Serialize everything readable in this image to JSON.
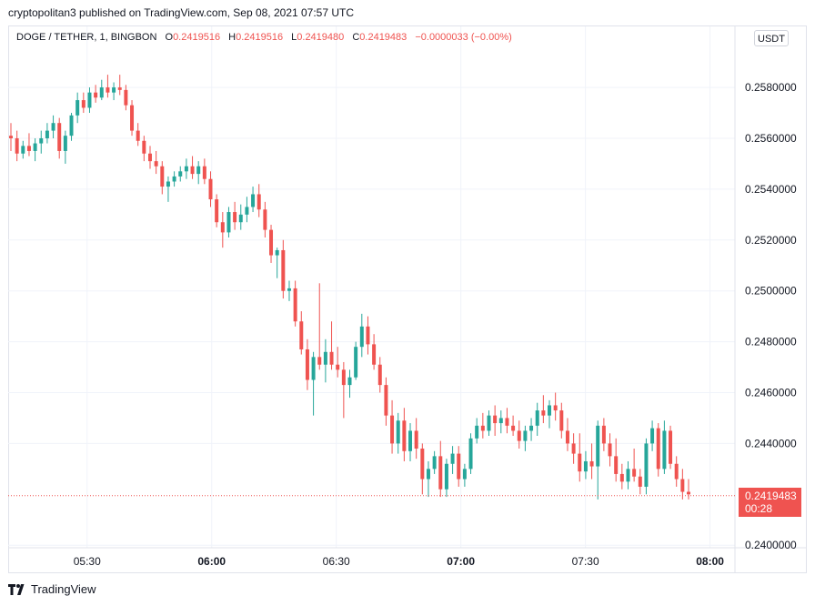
{
  "header": {
    "attribution": "cryptopolitan3 published on TradingView.com, Sep 08, 2021 07:57 UTC"
  },
  "legend": {
    "symbol": "DOGE / TETHER, 1, BINGBON",
    "o_label": "O",
    "o_value": "0.2419516",
    "h_label": "H",
    "h_value": "0.2419516",
    "l_label": "L",
    "l_value": "0.2419480",
    "c_label": "C",
    "c_value": "0.2419483",
    "change": "−0.0000033 (−0.00%)"
  },
  "currency_button": "USDT",
  "price_tag": {
    "price": "0.2419483",
    "countdown": "00:28"
  },
  "footer": {
    "brand": "TradingView",
    "logo_icon": "tradingview-logo-icon"
  },
  "colors": {
    "up": "#26a69a",
    "down": "#ef5350",
    "grid": "#f0f3fa",
    "text": "#131722"
  },
  "chart_data": {
    "type": "candlestick",
    "interval": "1",
    "grid": true,
    "y_ticks": [
      "0.2400000",
      "0.2440000",
      "0.2460000",
      "0.2480000",
      "0.2500000",
      "0.2520000",
      "0.2540000",
      "0.2560000",
      "0.2580000"
    ],
    "ylim": [
      0.2399,
      0.2604
    ],
    "x_ticks": [
      {
        "label": "05:30",
        "minute": 330,
        "bold": false
      },
      {
        "label": "06:00",
        "minute": 360,
        "bold": true
      },
      {
        "label": "06:30",
        "minute": 390,
        "bold": false
      },
      {
        "label": "07:00",
        "minute": 420,
        "bold": true
      },
      {
        "label": "07:30",
        "minute": 450,
        "bold": false
      },
      {
        "label": "08:00",
        "minute": 480,
        "bold": true
      }
    ],
    "xlim_minutes": [
      311,
      486
    ],
    "last_price": 0.2419483,
    "candles": [
      [
        0.2561,
        0.2566,
        0.2555,
        0.256
      ],
      [
        0.256,
        0.2563,
        0.2551,
        0.2554
      ],
      [
        0.2554,
        0.2559,
        0.2552,
        0.2557
      ],
      [
        0.2557,
        0.2562,
        0.2553,
        0.2555
      ],
      [
        0.2555,
        0.256,
        0.2551,
        0.2558
      ],
      [
        0.2558,
        0.2563,
        0.2554,
        0.256
      ],
      [
        0.256,
        0.2566,
        0.2558,
        0.2563
      ],
      [
        0.2563,
        0.2569,
        0.256,
        0.2566
      ],
      [
        0.2566,
        0.2568,
        0.2552,
        0.2555
      ],
      [
        0.2555,
        0.2563,
        0.255,
        0.2561
      ],
      [
        0.2561,
        0.257,
        0.2559,
        0.2569
      ],
      [
        0.2569,
        0.2578,
        0.2566,
        0.2575
      ],
      [
        0.2575,
        0.2578,
        0.257,
        0.2572
      ],
      [
        0.2572,
        0.258,
        0.257,
        0.2578
      ],
      [
        0.2578,
        0.2581,
        0.2574,
        0.2576
      ],
      [
        0.2576,
        0.2583,
        0.2575,
        0.258
      ],
      [
        0.258,
        0.2585,
        0.2576,
        0.2578
      ],
      [
        0.2578,
        0.2582,
        0.2575,
        0.258
      ],
      [
        0.258,
        0.2585,
        0.2577,
        0.2579
      ],
      [
        0.2579,
        0.2581,
        0.2571,
        0.2573
      ],
      [
        0.2573,
        0.2575,
        0.2561,
        0.2563
      ],
      [
        0.2563,
        0.2566,
        0.2557,
        0.2559
      ],
      [
        0.2559,
        0.2561,
        0.2551,
        0.2554
      ],
      [
        0.2554,
        0.2557,
        0.2548,
        0.2551
      ],
      [
        0.2551,
        0.2555,
        0.2546,
        0.2549
      ],
      [
        0.2549,
        0.2551,
        0.2538,
        0.2541
      ],
      [
        0.2541,
        0.2545,
        0.2535,
        0.2543
      ],
      [
        0.2543,
        0.2547,
        0.2541,
        0.2545
      ],
      [
        0.2545,
        0.2549,
        0.2543,
        0.2547
      ],
      [
        0.2547,
        0.2552,
        0.2544,
        0.2549
      ],
      [
        0.2549,
        0.2553,
        0.2544,
        0.2546
      ],
      [
        0.2546,
        0.2551,
        0.2542,
        0.2549
      ],
      [
        0.2549,
        0.2552,
        0.2542,
        0.2544
      ],
      [
        0.2544,
        0.2547,
        0.2533,
        0.2536
      ],
      [
        0.2536,
        0.2538,
        0.2525,
        0.2527
      ],
      [
        0.2527,
        0.2531,
        0.2517,
        0.2523
      ],
      [
        0.2523,
        0.2533,
        0.2521,
        0.2531
      ],
      [
        0.2531,
        0.2535,
        0.2524,
        0.2527
      ],
      [
        0.2527,
        0.2534,
        0.2524,
        0.253
      ],
      [
        0.253,
        0.2537,
        0.2527,
        0.2533
      ],
      [
        0.2533,
        0.2541,
        0.2531,
        0.2538
      ],
      [
        0.2538,
        0.2542,
        0.2529,
        0.2532
      ],
      [
        0.2532,
        0.2535,
        0.2521,
        0.2524
      ],
      [
        0.2524,
        0.2526,
        0.2511,
        0.2514
      ],
      [
        0.2514,
        0.2517,
        0.2505,
        0.2516
      ],
      [
        0.2516,
        0.252,
        0.2497,
        0.25
      ],
      [
        0.25,
        0.2504,
        0.2496,
        0.2501
      ],
      [
        0.2501,
        0.2504,
        0.2486,
        0.2488
      ],
      [
        0.2488,
        0.2492,
        0.2475,
        0.2477
      ],
      [
        0.2477,
        0.2481,
        0.2461,
        0.2465
      ],
      [
        0.2465,
        0.2476,
        0.2451,
        0.2474
      ],
      [
        0.2474,
        0.2503,
        0.2469,
        0.2471
      ],
      [
        0.2471,
        0.2481,
        0.2464,
        0.2476
      ],
      [
        0.2476,
        0.2488,
        0.2469,
        0.2471
      ],
      [
        0.2471,
        0.2478,
        0.2466,
        0.2469
      ],
      [
        0.2469,
        0.2472,
        0.245,
        0.2463
      ],
      [
        0.2463,
        0.2469,
        0.2458,
        0.2466
      ],
      [
        0.2466,
        0.248,
        0.2465,
        0.2478
      ],
      [
        0.2478,
        0.2491,
        0.2474,
        0.2486
      ],
      [
        0.2486,
        0.249,
        0.2475,
        0.2479
      ],
      [
        0.2479,
        0.2483,
        0.2469,
        0.2471
      ],
      [
        0.2471,
        0.2474,
        0.246,
        0.2463
      ],
      [
        0.2463,
        0.2466,
        0.2447,
        0.2451
      ],
      [
        0.2451,
        0.2457,
        0.2436,
        0.244
      ],
      [
        0.244,
        0.2452,
        0.2436,
        0.2449
      ],
      [
        0.2449,
        0.2454,
        0.2433,
        0.2437
      ],
      [
        0.2437,
        0.2448,
        0.2433,
        0.2445
      ],
      [
        0.2445,
        0.245,
        0.2434,
        0.2438
      ],
      [
        0.2438,
        0.244,
        0.242,
        0.2426
      ],
      [
        0.2426,
        0.2433,
        0.2419,
        0.243
      ],
      [
        0.243,
        0.2437,
        0.2428,
        0.2435
      ],
      [
        0.2435,
        0.2441,
        0.2419,
        0.2422
      ],
      [
        0.2422,
        0.2434,
        0.2419,
        0.2432
      ],
      [
        0.2432,
        0.2439,
        0.2428,
        0.2436
      ],
      [
        0.2436,
        0.2439,
        0.2423,
        0.2426
      ],
      [
        0.2426,
        0.2432,
        0.2423,
        0.243
      ],
      [
        0.243,
        0.2444,
        0.2428,
        0.2442
      ],
      [
        0.2442,
        0.245,
        0.244,
        0.2447
      ],
      [
        0.2447,
        0.2452,
        0.2442,
        0.2445
      ],
      [
        0.2445,
        0.2453,
        0.2443,
        0.2451
      ],
      [
        0.2451,
        0.2455,
        0.2443,
        0.2448
      ],
      [
        0.2448,
        0.2453,
        0.2444,
        0.245
      ],
      [
        0.245,
        0.2454,
        0.2444,
        0.2447
      ],
      [
        0.2447,
        0.2451,
        0.2443,
        0.2445
      ],
      [
        0.2445,
        0.2449,
        0.2438,
        0.2441
      ],
      [
        0.2441,
        0.2447,
        0.2437,
        0.2445
      ],
      [
        0.2445,
        0.245,
        0.2441,
        0.2447
      ],
      [
        0.2447,
        0.2456,
        0.2443,
        0.2453
      ],
      [
        0.2453,
        0.2459,
        0.2448,
        0.2451
      ],
      [
        0.2451,
        0.2457,
        0.2446,
        0.2455
      ],
      [
        0.2455,
        0.246,
        0.2449,
        0.2453
      ],
      [
        0.2453,
        0.2456,
        0.2442,
        0.2445
      ],
      [
        0.2445,
        0.245,
        0.2437,
        0.244
      ],
      [
        0.244,
        0.2444,
        0.2432,
        0.2436
      ],
      [
        0.2436,
        0.2444,
        0.2425,
        0.2429
      ],
      [
        0.2429,
        0.2437,
        0.2426,
        0.2433
      ],
      [
        0.2433,
        0.244,
        0.2426,
        0.2431
      ],
      [
        0.2431,
        0.2449,
        0.2418,
        0.2447
      ],
      [
        0.2447,
        0.245,
        0.2437,
        0.244
      ],
      [
        0.244,
        0.2444,
        0.2431,
        0.2435
      ],
      [
        0.2435,
        0.2442,
        0.2425,
        0.2428
      ],
      [
        0.2428,
        0.2432,
        0.2422,
        0.2425
      ],
      [
        0.2425,
        0.2433,
        0.2422,
        0.243
      ],
      [
        0.243,
        0.2438,
        0.2425,
        0.2427
      ],
      [
        0.2427,
        0.243,
        0.242,
        0.2423
      ],
      [
        0.2423,
        0.2442,
        0.242,
        0.244
      ],
      [
        0.244,
        0.2449,
        0.2437,
        0.2446
      ],
      [
        0.2446,
        0.2448,
        0.2427,
        0.243
      ],
      [
        0.243,
        0.2449,
        0.2428,
        0.2445
      ],
      [
        0.2445,
        0.2447,
        0.243,
        0.2432
      ],
      [
        0.2432,
        0.2435,
        0.2423,
        0.2426
      ],
      [
        0.2426,
        0.243,
        0.2418,
        0.2421
      ],
      [
        0.2421,
        0.2426,
        0.2418,
        0.242
      ]
    ]
  }
}
